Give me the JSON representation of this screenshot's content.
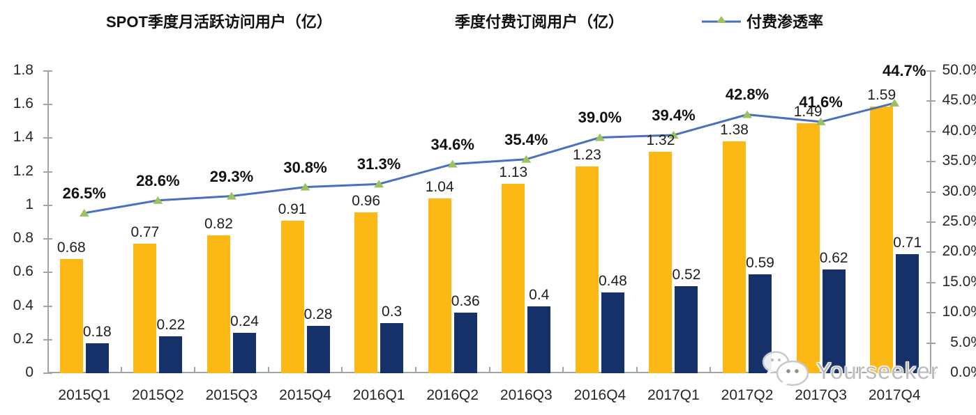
{
  "chart_data": {
    "type": "combo-bar-line",
    "categories": [
      "2015Q1",
      "2015Q2",
      "2015Q3",
      "2015Q4",
      "2016Q1",
      "2016Q2",
      "2016Q3",
      "2016Q4",
      "2017Q1",
      "2017Q2",
      "2017Q3",
      "2017Q4"
    ],
    "series": [
      {
        "name": "SPOT季度月活跃访问用户（亿）",
        "type": "bar",
        "axis": "left",
        "color": "#FCB814",
        "values": [
          0.68,
          0.77,
          0.82,
          0.91,
          0.96,
          1.04,
          1.13,
          1.23,
          1.32,
          1.38,
          1.49,
          1.59
        ],
        "labels": [
          "0.68",
          "0.77",
          "0.82",
          "0.91",
          "0.96",
          "1.04",
          "1.13",
          "1.23",
          "1.32",
          "1.38",
          "1.49",
          "1.59"
        ]
      },
      {
        "name": "季度付费订阅用户（亿）",
        "type": "bar",
        "axis": "left",
        "color": "#16306A",
        "values": [
          0.18,
          0.22,
          0.24,
          0.28,
          0.3,
          0.36,
          0.4,
          0.48,
          0.52,
          0.59,
          0.62,
          0.71
        ],
        "labels": [
          "0.18",
          "0.22",
          "0.24",
          "0.28",
          "0.3",
          "0.36",
          "0.4",
          "0.48",
          "0.52",
          "0.59",
          "0.62",
          "0.71"
        ]
      },
      {
        "name": "付费渗透率",
        "type": "line",
        "axis": "right",
        "color": "#4B6FBF",
        "marker_color": "#9CC25E",
        "values": [
          26.5,
          28.6,
          29.3,
          30.8,
          31.3,
          34.6,
          35.4,
          39.0,
          39.4,
          42.8,
          41.6,
          44.7
        ],
        "labels": [
          "26.5%",
          "28.6%",
          "29.3%",
          "30.8%",
          "31.3%",
          "34.6%",
          "35.4%",
          "39.0%",
          "39.4%",
          "42.8%",
          "41.6%",
          "44.7%"
        ]
      }
    ],
    "left_axis": {
      "min": 0,
      "max": 1.8,
      "tick_labels_top_down": [
        "1.8",
        "1.6",
        "1.4",
        "1.2",
        "1",
        "0.8",
        "0.6",
        "0.4",
        "0.2",
        "0"
      ]
    },
    "right_axis": {
      "min": 0,
      "max": 50,
      "tick_labels_top_down": [
        "50.0%",
        "45.0%",
        "40.0%",
        "35.0%",
        "30.0%",
        "25.0%",
        "20.0%",
        "15.0%",
        "10.0%",
        "5.0%",
        "0.0%"
      ]
    },
    "grid": false,
    "legend_position": "top"
  },
  "watermark": {
    "text": "Yourseeker",
    "icon": "wechat-icon"
  }
}
